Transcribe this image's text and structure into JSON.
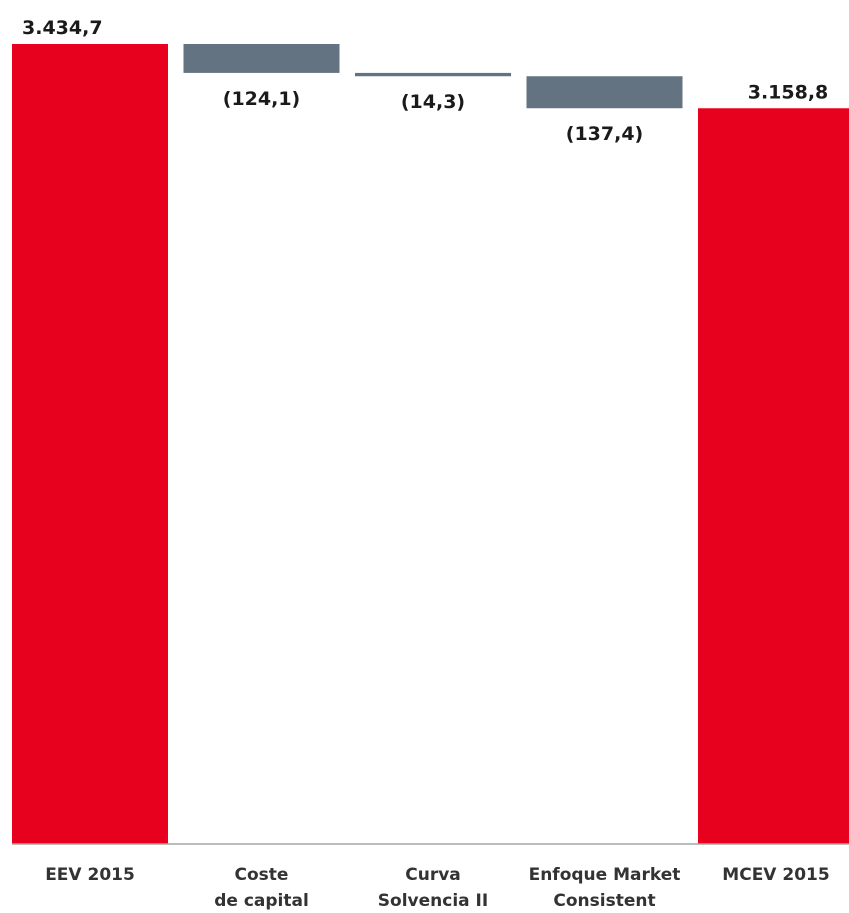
{
  "chart_data": {
    "type": "bar",
    "subtype": "waterfall",
    "categories": [
      [
        "EEV 2015"
      ],
      [
        "Coste",
        "de capital"
      ],
      [
        "Curva",
        "Solvencia II"
      ],
      [
        "Enfoque Market",
        "Consistent"
      ],
      [
        "MCEV 2015"
      ]
    ],
    "values": [
      3434.7,
      -124.1,
      -14.3,
      -137.4,
      3158.8
    ],
    "bar_kinds": [
      "total",
      "delta",
      "delta",
      "delta",
      "total"
    ],
    "data_labels": [
      "3.434,7",
      "(124,1)",
      "(14,3)",
      "(137,4)",
      "3.158,8"
    ],
    "colors": {
      "total": "#e8001f",
      "delta": "#637381",
      "axis": "#a6a6a6"
    },
    "ylim": [
      0,
      3434.7
    ],
    "grid": false,
    "legend": "none"
  }
}
